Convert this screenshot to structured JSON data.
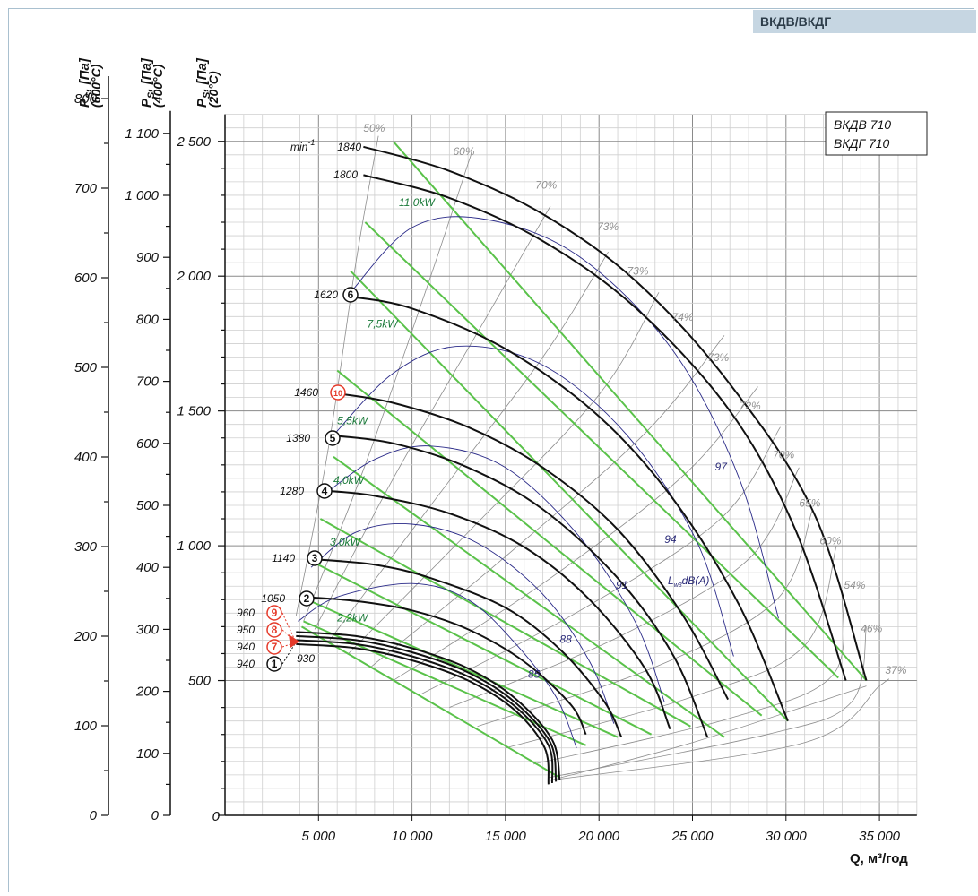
{
  "header": {
    "tab": "ВКДВ/ВКДГ"
  },
  "chart_data": {
    "type": "line",
    "legend_box": [
      "ВКДВ 710",
      "ВКДГ 710"
    ],
    "xlabel": "Q, м³/год",
    "x_ticks": [
      "5 000",
      "10 000",
      "15 000",
      "20 000",
      "25 000",
      "30 000",
      "35 000"
    ],
    "x_tick_values": [
      5000,
      10000,
      15000,
      20000,
      25000,
      30000,
      35000
    ],
    "xlim": [
      0,
      37000
    ],
    "ylim": [
      0,
      2600
    ],
    "y_axes": [
      {
        "label_main": "P",
        "label_sub": "S",
        "label_rest": ", [Па]",
        "label_temp": "(20°C)",
        "ticks": [
          "0",
          "500",
          "1 000",
          "1 500",
          "2 000",
          "2 500"
        ],
        "values": [
          0,
          500,
          1000,
          1500,
          2000,
          2500
        ]
      },
      {
        "label_main": "P",
        "label_sub": "S",
        "label_rest": ", [Па]",
        "label_temp": "(400°C)",
        "ticks": [
          "0",
          "100",
          "200",
          "300",
          "400",
          "500",
          "600",
          "700",
          "800",
          "900",
          "1 000",
          "1 100"
        ],
        "values": [
          0,
          100,
          200,
          300,
          400,
          500,
          600,
          700,
          800,
          900,
          1000,
          1100
        ]
      },
      {
        "label_main": "P",
        "label_sub": "S",
        "label_rest": ", [Па]",
        "label_temp": "(600°C)",
        "ticks": [
          "0",
          "100",
          "200",
          "300",
          "400",
          "500",
          "600",
          "700",
          "800"
        ],
        "values": [
          0,
          100,
          200,
          300,
          400,
          500,
          600,
          700,
          800
        ]
      }
    ],
    "rpm_unit": "min",
    "rpm_unit_exp": "-1",
    "fan_curves": [
      {
        "rpm": "1840",
        "points": [
          [
            7400,
            2480
          ],
          [
            12000,
            2390
          ],
          [
            17000,
            2230
          ],
          [
            22000,
            1980
          ],
          [
            27000,
            1600
          ],
          [
            31500,
            1120
          ],
          [
            34300,
            500
          ]
        ]
      },
      {
        "rpm": "1800",
        "points": [
          [
            7400,
            2375
          ],
          [
            12000,
            2290
          ],
          [
            17000,
            2130
          ],
          [
            22000,
            1880
          ],
          [
            27000,
            1500
          ],
          [
            30500,
            1060
          ],
          [
            33200,
            500
          ]
        ]
      },
      {
        "rpm": "1620",
        "points": [
          [
            6600,
            1925
          ],
          [
            10000,
            1880
          ],
          [
            15000,
            1730
          ],
          [
            20000,
            1480
          ],
          [
            24000,
            1170
          ],
          [
            27500,
            780
          ],
          [
            30100,
            350
          ]
        ]
      },
      {
        "rpm": "1460",
        "points": [
          [
            6000,
            1565
          ],
          [
            9000,
            1530
          ],
          [
            13000,
            1440
          ],
          [
            17000,
            1290
          ],
          [
            21000,
            1060
          ],
          [
            24500,
            740
          ],
          [
            26900,
            430
          ]
        ]
      },
      {
        "rpm": "1380",
        "points": [
          [
            5600,
            1410
          ],
          [
            9000,
            1380
          ],
          [
            13000,
            1290
          ],
          [
            17000,
            1135
          ],
          [
            21000,
            880
          ],
          [
            24000,
            590
          ],
          [
            25800,
            290
          ]
        ]
      },
      {
        "rpm": "1280",
        "points": [
          [
            5200,
            1205
          ],
          [
            8000,
            1185
          ],
          [
            12000,
            1120
          ],
          [
            16000,
            995
          ],
          [
            19500,
            800
          ],
          [
            22500,
            540
          ],
          [
            23800,
            320
          ]
        ]
      },
      {
        "rpm": "1140",
        "points": [
          [
            4700,
            950
          ],
          [
            8000,
            930
          ],
          [
            11000,
            880
          ],
          [
            15000,
            770
          ],
          [
            18000,
            610
          ],
          [
            20300,
            420
          ],
          [
            21200,
            290
          ]
        ]
      },
      {
        "rpm": "1050",
        "points": [
          [
            4200,
            810
          ],
          [
            7000,
            795
          ],
          [
            10000,
            760
          ],
          [
            13000,
            690
          ],
          [
            16000,
            570
          ],
          [
            18500,
            410
          ],
          [
            19300,
            300
          ]
        ]
      },
      {
        "rpm": "960",
        "points": [
          [
            3800,
            680
          ],
          [
            7000,
            665
          ],
          [
            10000,
            620
          ],
          [
            13000,
            545
          ],
          [
            15500,
            435
          ],
          [
            17500,
            280
          ],
          [
            17900,
            130
          ]
        ]
      },
      {
        "rpm": "950",
        "points": [
          [
            3800,
            665
          ],
          [
            7000,
            650
          ],
          [
            10000,
            605
          ],
          [
            13000,
            530
          ],
          [
            15500,
            420
          ],
          [
            17400,
            270
          ],
          [
            17700,
            125
          ]
        ]
      },
      {
        "rpm": "940",
        "points": [
          [
            3800,
            650
          ],
          [
            7000,
            635
          ],
          [
            10000,
            590
          ],
          [
            13000,
            515
          ],
          [
            15500,
            405
          ],
          [
            17300,
            260
          ],
          [
            17500,
            120
          ]
        ]
      },
      {
        "rpm": "930",
        "points": [
          [
            3800,
            635
          ],
          [
            7000,
            620
          ],
          [
            10000,
            575
          ],
          [
            13000,
            500
          ],
          [
            15500,
            390
          ],
          [
            17100,
            250
          ],
          [
            17300,
            115
          ]
        ]
      }
    ],
    "rpm_labels": [
      {
        "rpm": "1840",
        "marker": ""
      },
      {
        "rpm": "1800",
        "marker": ""
      },
      {
        "rpm": "1620",
        "marker": "6"
      },
      {
        "rpm": "1460",
        "marker": "10"
      },
      {
        "rpm": "1380",
        "marker": "5"
      },
      {
        "rpm": "1280",
        "marker": "4"
      },
      {
        "rpm": "1140",
        "marker": "3"
      },
      {
        "rpm": "1050",
        "marker": "2"
      },
      {
        "rpm": "960",
        "marker": "9"
      },
      {
        "rpm": "950",
        "marker": "8"
      },
      {
        "rpm": "940",
        "marker": "7"
      },
      {
        "rpm": "940",
        "marker": "1"
      },
      {
        "rpm": "930",
        "marker": ""
      }
    ],
    "efficiency_labels": [
      "50%",
      "60%",
      "70%",
      "73%",
      "73%",
      "74%",
      "73%",
      "72%",
      "70%",
      "65%",
      "60%",
      "54%",
      "46%",
      "37%"
    ],
    "power_labels": [
      "11,0kW",
      "7,5kW",
      "5,5kW",
      "4,0kW",
      "3,0kW",
      "2,2kW"
    ],
    "noise_labels": [
      "97",
      "94",
      "91",
      "88",
      "85"
    ],
    "noise_unit": "L",
    "noise_unit_sub": "w3",
    "noise_unit_rest": "dB(A)",
    "colors": {
      "fan_curve": "#111111",
      "efficiency": "#8c8c8c",
      "power": "#5ac24a",
      "noise": "#2a2a88",
      "marker_red": "#e53a2a",
      "tab": "#c6d6e2"
    }
  }
}
